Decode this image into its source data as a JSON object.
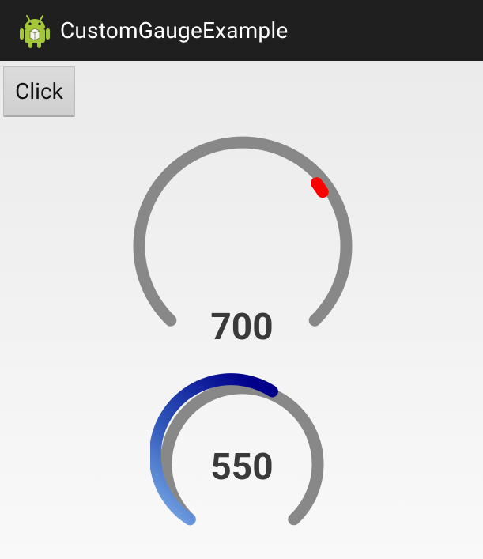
{
  "app": {
    "title": "CustomGaugeExample",
    "icon": "android-icon"
  },
  "toolbar": {
    "click_label": "Click"
  },
  "gauges": [
    {
      "value": "700",
      "track_color": "#888888",
      "indicator_color": "#ff0000"
    },
    {
      "value": "550",
      "track_color": "#888888",
      "gradient_start": "#7fb1ea",
      "gradient_end": "#00008b"
    }
  ],
  "colors": {
    "action_bar": "#1f1f1f",
    "android_green": "#a4c639",
    "value_text": "#3a3a3a"
  }
}
